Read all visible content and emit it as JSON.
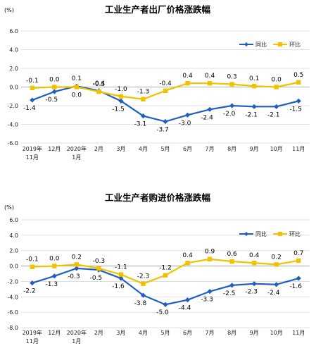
{
  "chart_data": [
    {
      "type": "line",
      "title": "工业生产者出厂价格涨跌幅",
      "unit": "(%)",
      "categories": [
        "2019年|11月",
        "12月",
        "2020年|1月",
        "2月",
        "3月",
        "4月",
        "5月",
        "6月",
        "7月",
        "8月",
        "9月",
        "10月",
        "11月"
      ],
      "y_ticks": [
        "6.0",
        "4.0",
        "2.0",
        "0.0",
        "-2.0",
        "-4.0",
        "-6.0"
      ],
      "ylim": [
        -6,
        6
      ],
      "grid": true,
      "legend_position": "top-right",
      "series": [
        {
          "name": "同比",
          "color": "#1f5fbf",
          "marker": "diamond",
          "values": [
            -1.4,
            -0.5,
            0.1,
            -0.4,
            -1.5,
            -3.1,
            -3.7,
            -3.0,
            -2.4,
            -2.0,
            -2.1,
            -2.1,
            -1.5
          ],
          "labels": [
            "-1.4",
            "-0.5",
            "0.1",
            "-0.4",
            "-1.5",
            "-3.1",
            "-3.7",
            "-3.0",
            "-2.4",
            "-2.0",
            "-2.1",
            "-2.1",
            "-1.5"
          ]
        },
        {
          "name": "环比",
          "color": "#f2c200",
          "marker": "square",
          "values": [
            -0.1,
            0.0,
            0.0,
            -0.5,
            -1.0,
            -1.3,
            -0.4,
            0.4,
            0.4,
            0.3,
            0.1,
            0.0,
            0.5
          ],
          "labels": [
            "-0.1",
            "0.0",
            "0.0",
            "-0.5",
            "-1.0",
            "-1.3",
            "-0.4",
            "0.4",
            "0.4",
            "0.3",
            "0.1",
            "0.0",
            "0.5"
          ]
        }
      ]
    },
    {
      "type": "line",
      "title": "工业生产者购进价格涨跌幅",
      "unit": "(%)",
      "categories": [
        "2019年|11月",
        "12月",
        "2020年|1月",
        "2月",
        "3月",
        "4月",
        "5月",
        "6月",
        "7月",
        "8月",
        "9月",
        "10月",
        "11月"
      ],
      "y_ticks": [
        "6.0",
        "4.0",
        "2.0",
        "0.0",
        "-2.0",
        "-4.0",
        "-6.0",
        "-8.0"
      ],
      "ylim": [
        -8,
        6
      ],
      "grid": true,
      "legend_position": "top-right",
      "series": [
        {
          "name": "同比",
          "color": "#1f5fbf",
          "marker": "diamond",
          "values": [
            -2.2,
            -1.3,
            -0.3,
            -0.5,
            -1.6,
            -3.8,
            -5.0,
            -4.4,
            -3.3,
            -2.5,
            -2.3,
            -2.4,
            -1.6
          ],
          "labels": [
            "-2.2",
            "-1.3",
            "-0.3",
            "-0.5",
            "-1.6",
            "-3.8",
            "-5.0",
            "-4.4",
            "-3.3",
            "-2.5",
            "-2.3",
            "-2.4",
            "-1.6"
          ]
        },
        {
          "name": "环比",
          "color": "#f2c200",
          "marker": "square",
          "values": [
            -0.1,
            0.0,
            0.2,
            -0.3,
            -1.1,
            -2.3,
            -1.2,
            0.4,
            0.9,
            0.6,
            0.4,
            0.2,
            0.7
          ],
          "labels": [
            "-0.1",
            "0.0",
            "0.2",
            "-0.3",
            "-1.1",
            "-2.3",
            "-1.2",
            "0.4",
            "0.9",
            "0.6",
            "0.4",
            "0.2",
            "0.7"
          ]
        }
      ]
    }
  ]
}
